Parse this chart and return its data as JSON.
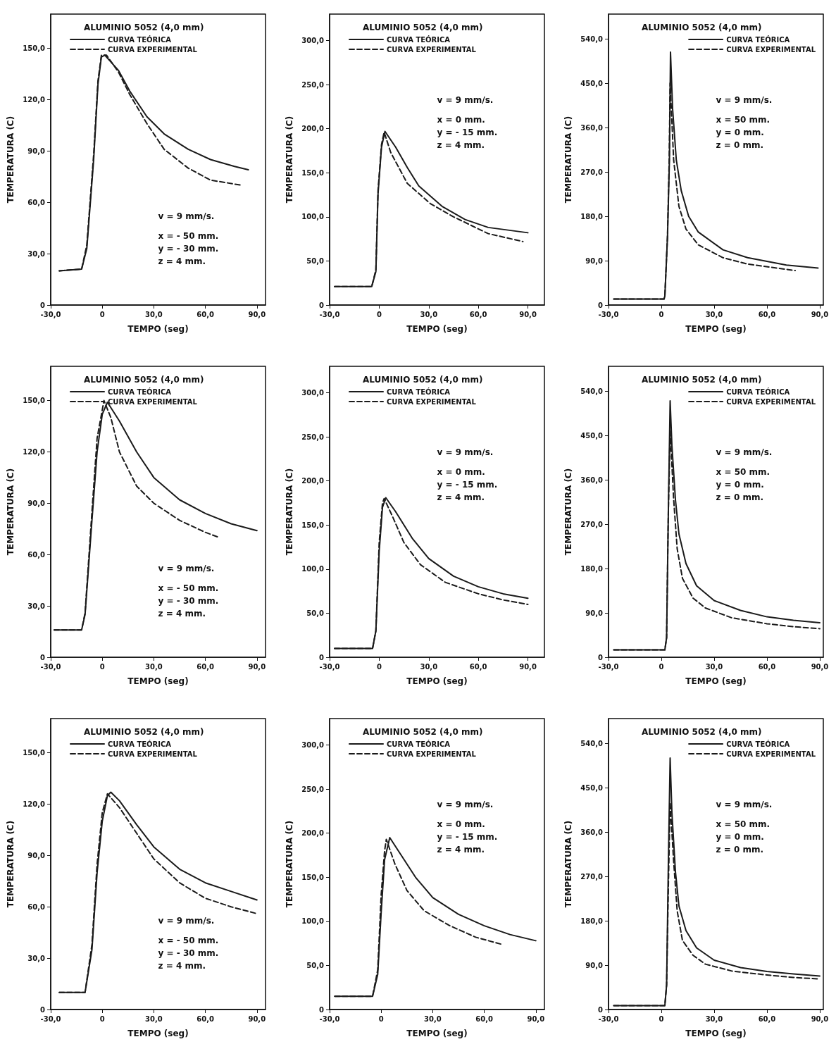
{
  "chart_data": [
    {
      "type": "line",
      "title": "ALUMINIO 5052 (4,0 mm)",
      "xlabel": "TEMPO (seg)",
      "ylabel": "TEMPERATURA (C)",
      "xlim": [
        -30,
        95
      ],
      "ylim": [
        0,
        170
      ],
      "xticks": [
        {
          "value": -30,
          "label": "-30,0"
        },
        {
          "value": 0,
          "label": "0"
        },
        {
          "value": 30,
          "label": "30,0"
        },
        {
          "value": 60,
          "label": "60,0"
        },
        {
          "value": 90,
          "label": "90,0"
        }
      ],
      "yticks": [
        {
          "value": 0,
          "label": "0"
        },
        {
          "value": 30,
          "label": "30,0"
        },
        {
          "value": 60,
          "label": "60,0"
        },
        {
          "value": 90,
          "label": "90,0"
        },
        {
          "value": 120,
          "label": "120,0"
        },
        {
          "value": 150,
          "label": "150,0"
        }
      ],
      "grid": false,
      "legend": "top left",
      "marker": "none",
      "annotations": [
        "v = 9 mm/s.",
        "x = - 50 mm.",
        "y = - 30 mm.",
        "z = 4 mm."
      ],
      "series": [
        {
          "name": "CURVA TEÓRICA",
          "color": "#1a1a1a",
          "line_style": "solid",
          "x": [
            -25,
            -12,
            -9,
            -5,
            -2.5,
            -0.5,
            1.5,
            9.5,
            16,
            26,
            36,
            50,
            63,
            77,
            85
          ],
          "values": [
            20,
            21,
            33,
            85,
            129,
            145,
            146,
            137,
            125,
            110,
            100,
            91,
            85,
            81,
            79
          ]
        },
        {
          "name": "CURVA EXPERIMENTAL",
          "color": "#1a1a1a",
          "line_style": "dashed",
          "x": [
            -25,
            -12,
            -9,
            -5,
            -2.5,
            -0.5,
            2.5,
            9.5,
            16,
            26,
            36,
            50,
            63,
            81
          ],
          "values": [
            20,
            21,
            35,
            88,
            131,
            146,
            146,
            136,
            123,
            106,
            91,
            80,
            73,
            70
          ]
        }
      ]
    },
    {
      "type": "line",
      "title": "ALUMINIO 5052 (4,0 mm)",
      "xlabel": "TEMPO (seg)",
      "ylabel": "TEMPERATURA (C)",
      "xlim": [
        -30,
        100
      ],
      "ylim": [
        0,
        330
      ],
      "xticks": [
        {
          "value": -30,
          "label": "-30,0"
        },
        {
          "value": 0,
          "label": "0"
        },
        {
          "value": 30,
          "label": "30,0"
        },
        {
          "value": 60,
          "label": "60,0"
        },
        {
          "value": 90,
          "label": "90,0"
        }
      ],
      "yticks": [
        {
          "value": 0,
          "label": "0"
        },
        {
          "value": 50,
          "label": "50,0"
        },
        {
          "value": 100,
          "label": "100,0"
        },
        {
          "value": 150,
          "label": "150,0"
        },
        {
          "value": 200,
          "label": "200,0"
        },
        {
          "value": 250,
          "label": "250,0"
        },
        {
          "value": 300,
          "label": "300,0"
        }
      ],
      "grid": false,
      "legend": "top left",
      "marker": "none",
      "annotations": [
        "v = 9 mm/s.",
        "x = 0 mm.",
        "y = - 15 mm.",
        "z = 4 mm."
      ],
      "series": [
        {
          "name": "CURVA TEÓRICA",
          "color": "#1a1a1a",
          "line_style": "solid",
          "x": [
            -27,
            -4.5,
            -2,
            -0.7,
            1.4,
            3.5,
            10,
            17,
            24,
            38,
            52,
            66,
            90
          ],
          "values": [
            21,
            21,
            38,
            126,
            179,
            197,
            179,
            156,
            135,
            112,
            97,
            88,
            82
          ]
        },
        {
          "name": "CURVA EXPERIMENTAL",
          "color": "#1a1a1a",
          "line_style": "dashed",
          "x": [
            -27,
            -4.5,
            -2,
            -0.7,
            1.4,
            3,
            7,
            17,
            31,
            45,
            66,
            87
          ],
          "values": [
            21,
            21,
            40,
            130,
            182,
            196,
            173,
            138,
            115,
            100,
            81,
            72
          ]
        }
      ]
    },
    {
      "type": "line",
      "title": "ALUMINIO 5052 (4,0 mm)",
      "xlabel": "TEMPO (seg)",
      "ylabel": "TEMPERATURA (C)",
      "xlim": [
        -30,
        92
      ],
      "ylim": [
        0,
        590
      ],
      "xticks": [
        {
          "value": -30,
          "label": "-30,0"
        },
        {
          "value": 0,
          "label": "0"
        },
        {
          "value": 30,
          "label": "30,0"
        },
        {
          "value": 60,
          "label": "60,0"
        },
        {
          "value": 90,
          "label": "90,0"
        }
      ],
      "yticks": [
        {
          "value": 0,
          "label": "0"
        },
        {
          "value": 90,
          "label": "90,0"
        },
        {
          "value": 180,
          "label": "180,0"
        },
        {
          "value": 270,
          "label": "270,0"
        },
        {
          "value": 360,
          "label": "360,0"
        },
        {
          "value": 450,
          "label": "450,0"
        },
        {
          "value": 540,
          "label": "540,0"
        }
      ],
      "grid": false,
      "legend": "top right",
      "marker": "none",
      "annotations": [
        "v = 9 mm/s.",
        "x = 50 mm.",
        "y = 0 mm.",
        "z = 0 mm."
      ],
      "series": [
        {
          "name": "CURVA TEÓRICA",
          "color": "#1a1a1a",
          "line_style": "solid",
          "x": [
            -27,
            1.5,
            2,
            3.5,
            4.6,
            5.2,
            6.4,
            8.5,
            11.3,
            15.5,
            21,
            35,
            49,
            71,
            89
          ],
          "values": [
            12,
            12,
            18,
            138,
            294,
            513,
            398,
            294,
            232,
            180,
            148,
            112,
            96,
            81,
            75
          ]
        },
        {
          "name": "CURVA EXPERIMENTAL",
          "color": "#1a1a1a",
          "line_style": "dashed",
          "x": [
            -27,
            1.5,
            2,
            3.5,
            4.5,
            5,
            7,
            10,
            14,
            21,
            35,
            49,
            76
          ],
          "values": [
            12,
            12,
            18,
            140,
            300,
            450,
            294,
            200,
            154,
            122,
            96,
            83,
            70
          ]
        }
      ]
    },
    {
      "type": "line",
      "title": "ALUMINIO 5052 (4,0 mm)",
      "xlabel": "TEMPO (seg)",
      "ylabel": "TEMPERATURA (C)",
      "xlim": [
        -30,
        95
      ],
      "ylim": [
        0,
        170
      ],
      "xticks": [
        {
          "value": -30,
          "label": "-30,0"
        },
        {
          "value": 0,
          "label": "0"
        },
        {
          "value": 30,
          "label": "30,0"
        },
        {
          "value": 60,
          "label": "60,0"
        },
        {
          "value": 90,
          "label": "90,0"
        }
      ],
      "yticks": [
        {
          "value": 0,
          "label": "0"
        },
        {
          "value": 30,
          "label": "30,0"
        },
        {
          "value": 60,
          "label": "60,0"
        },
        {
          "value": 90,
          "label": "90,0"
        },
        {
          "value": 120,
          "label": "120,0"
        },
        {
          "value": 150,
          "label": "150,0"
        }
      ],
      "grid": false,
      "legend": "top left",
      "marker": "none",
      "annotations": [
        "v = 9 mm/s.",
        "x = - 50 mm.",
        "y = - 30 mm.",
        "z = 4 mm."
      ],
      "series": [
        {
          "name": "CURVA TEÓRICA",
          "color": "#1a1a1a",
          "line_style": "solid",
          "x": [
            -28,
            -12,
            -10,
            -6,
            -3,
            0,
            3,
            10,
            20,
            30,
            45,
            60,
            75,
            90
          ],
          "values": [
            16,
            16,
            25,
            80,
            120,
            142,
            149,
            138,
            120,
            105,
            92,
            84,
            78,
            74
          ]
        },
        {
          "name": "CURVA EXPERIMENTAL",
          "color": "#1a1a1a",
          "line_style": "dashed",
          "x": [
            -28,
            -12,
            -10,
            -6,
            -3,
            1,
            5,
            10,
            20,
            30,
            45,
            60,
            68
          ],
          "values": [
            16,
            16,
            26,
            85,
            128,
            150,
            140,
            120,
            100,
            90,
            80,
            73,
            70
          ]
        }
      ]
    },
    {
      "type": "line",
      "title": "ALUMINIO 5052 (4,0 mm)",
      "xlabel": "TEMPO (seg)",
      "ylabel": "TEMPERATURA (C)",
      "xlim": [
        -30,
        100
      ],
      "ylim": [
        0,
        330
      ],
      "xticks": [
        {
          "value": -30,
          "label": "-30,0"
        },
        {
          "value": 0,
          "label": "0"
        },
        {
          "value": 30,
          "label": "30,0"
        },
        {
          "value": 60,
          "label": "60,0"
        },
        {
          "value": 90,
          "label": "90,0"
        }
      ],
      "yticks": [
        {
          "value": 0,
          "label": "0"
        },
        {
          "value": 50,
          "label": "50,0"
        },
        {
          "value": 100,
          "label": "100,0"
        },
        {
          "value": 150,
          "label": "150,0"
        },
        {
          "value": 200,
          "label": "200,0"
        },
        {
          "value": 250,
          "label": "250,0"
        },
        {
          "value": 300,
          "label": "300,0"
        }
      ],
      "grid": false,
      "legend": "top left",
      "marker": "none",
      "annotations": [
        "v = 9 mm/s.",
        "x = 0 mm.",
        "y = - 15 mm.",
        "z = 4 mm."
      ],
      "series": [
        {
          "name": "CURVA TEÓRICA",
          "color": "#1a1a1a",
          "line_style": "solid",
          "x": [
            -27,
            -4,
            -2,
            0,
            2,
            4,
            10,
            20,
            30,
            45,
            60,
            75,
            90
          ],
          "values": [
            10,
            10,
            30,
            120,
            170,
            181,
            165,
            135,
            112,
            92,
            80,
            72,
            67
          ]
        },
        {
          "name": "CURVA EXPERIMENTAL",
          "color": "#1a1a1a",
          "line_style": "dashed",
          "x": [
            -27,
            -4,
            -2,
            0,
            2,
            3,
            8,
            15,
            25,
            40,
            60,
            75,
            90
          ],
          "values": [
            10,
            10,
            30,
            130,
            175,
            180,
            160,
            130,
            105,
            85,
            72,
            65,
            60
          ]
        }
      ]
    },
    {
      "type": "line",
      "title": "ALUMINIO 5052 (4,0 mm)",
      "xlabel": "TEMPO (seg)",
      "ylabel": "TEMPERATURA (C)",
      "xlim": [
        -30,
        92
      ],
      "ylim": [
        0,
        590
      ],
      "xticks": [
        {
          "value": -30,
          "label": "-30,0"
        },
        {
          "value": 0,
          "label": "0"
        },
        {
          "value": 30,
          "label": "30,0"
        },
        {
          "value": 60,
          "label": "60,0"
        },
        {
          "value": 90,
          "label": "90,0"
        }
      ],
      "yticks": [
        {
          "value": 0,
          "label": "0"
        },
        {
          "value": 90,
          "label": "90,0"
        },
        {
          "value": 180,
          "label": "180,0"
        },
        {
          "value": 270,
          "label": "270,0"
        },
        {
          "value": 360,
          "label": "360,0"
        },
        {
          "value": 450,
          "label": "450,0"
        },
        {
          "value": 540,
          "label": "540,0"
        }
      ],
      "grid": false,
      "legend": "top right",
      "marker": "none",
      "annotations": [
        "v = 9 mm/s.",
        "x = 50 mm.",
        "y = 0 mm.",
        "z = 0 mm."
      ],
      "series": [
        {
          "name": "CURVA TEÓRICA",
          "color": "#1a1a1a",
          "line_style": "solid",
          "x": [
            -27,
            2,
            3,
            4,
            5,
            6,
            8,
            10,
            14,
            20,
            30,
            45,
            60,
            75,
            90
          ],
          "values": [
            15,
            15,
            40,
            300,
            520,
            430,
            320,
            250,
            190,
            145,
            115,
            95,
            82,
            75,
            70
          ]
        },
        {
          "name": "CURVA EXPERIMENTAL",
          "color": "#1a1a1a",
          "line_style": "dashed",
          "x": [
            -27,
            2,
            3,
            4,
            5,
            7,
            9,
            12,
            18,
            25,
            40,
            60,
            75,
            90
          ],
          "values": [
            15,
            15,
            40,
            300,
            460,
            320,
            220,
            160,
            120,
            100,
            80,
            68,
            62,
            58
          ]
        }
      ]
    },
    {
      "type": "line",
      "title": "ALUMINIO 5052 (4,0 mm)",
      "xlabel": "TEMPO (seg)",
      "ylabel": "TEMPERATURA (C)",
      "xlim": [
        -30,
        95
      ],
      "ylim": [
        0,
        170
      ],
      "xticks": [
        {
          "value": -30,
          "label": "-30,0"
        },
        {
          "value": 0,
          "label": "0"
        },
        {
          "value": 30,
          "label": "30,0"
        },
        {
          "value": 60,
          "label": "60,0"
        },
        {
          "value": 90,
          "label": "90,0"
        }
      ],
      "yticks": [
        {
          "value": 0,
          "label": "0"
        },
        {
          "value": 30,
          "label": "30,0"
        },
        {
          "value": 60,
          "label": "60,0"
        },
        {
          "value": 90,
          "label": "90,0"
        },
        {
          "value": 120,
          "label": "120,0"
        },
        {
          "value": 150,
          "label": "150,0"
        }
      ],
      "grid": false,
      "legend": "top left",
      "marker": "none",
      "annotations": [
        "v = 9 mm/s.",
        "x = - 50 mm.",
        "y = - 30 mm.",
        "z = 4 mm."
      ],
      "series": [
        {
          "name": "CURVA TEÓRICA",
          "color": "#1a1a1a",
          "line_style": "solid",
          "x": [
            -25,
            -10,
            -6,
            -3,
            0,
            3,
            5,
            10,
            20,
            30,
            45,
            60,
            75,
            90
          ],
          "values": [
            10,
            10,
            35,
            80,
            110,
            125,
            127,
            122,
            108,
            95,
            82,
            74,
            69,
            64
          ]
        },
        {
          "name": "CURVA EXPERIMENTAL",
          "color": "#1a1a1a",
          "line_style": "dashed",
          "x": [
            -25,
            -10,
            -6,
            -3,
            0,
            3,
            10,
            20,
            30,
            45,
            60,
            75,
            90
          ],
          "values": [
            10,
            10,
            38,
            85,
            115,
            126,
            118,
            103,
            88,
            74,
            65,
            60,
            56
          ]
        }
      ]
    },
    {
      "type": "line",
      "title": "ALUMINIO 5052 (4,0 mm)",
      "xlabel": "TEMPO (seg)",
      "ylabel": "TEMPERATURA (C)",
      "xlim": [
        -30,
        95
      ],
      "ylim": [
        0,
        330
      ],
      "xticks": [
        {
          "value": -30,
          "label": "-30,0"
        },
        {
          "value": 0,
          "label": "0"
        },
        {
          "value": 30,
          "label": "30,0"
        },
        {
          "value": 60,
          "label": "60,0"
        },
        {
          "value": 90,
          "label": "90,0"
        }
      ],
      "yticks": [
        {
          "value": 0,
          "label": "0"
        },
        {
          "value": 50,
          "label": "50,0"
        },
        {
          "value": 100,
          "label": "100,0"
        },
        {
          "value": 150,
          "label": "150,0"
        },
        {
          "value": 200,
          "label": "200,0"
        },
        {
          "value": 250,
          "label": "250,0"
        },
        {
          "value": 300,
          "label": "300,0"
        }
      ],
      "grid": false,
      "legend": "top left",
      "marker": "none",
      "annotations": [
        "v = 9 mm/s.",
        "x = 0 mm.",
        "y = - 15 mm.",
        "z = 4 mm."
      ],
      "series": [
        {
          "name": "CURVA TEÓRICA",
          "color": "#1a1a1a",
          "line_style": "solid",
          "x": [
            -27,
            -5,
            -2,
            0,
            2,
            5,
            10,
            20,
            30,
            45,
            60,
            75,
            90
          ],
          "values": [
            15,
            15,
            40,
            110,
            170,
            195,
            180,
            150,
            127,
            108,
            95,
            85,
            78
          ]
        },
        {
          "name": "CURVA EXPERIMENTAL",
          "color": "#1a1a1a",
          "line_style": "dashed",
          "x": [
            -27,
            -5,
            -2,
            0,
            2,
            3,
            8,
            15,
            25,
            40,
            55,
            70
          ],
          "values": [
            15,
            15,
            45,
            130,
            180,
            193,
            165,
            135,
            112,
            95,
            82,
            74
          ]
        }
      ]
    },
    {
      "type": "line",
      "title": "ALUMINIO 5052 (4,0 mm)",
      "xlabel": "TEMPO (seg)",
      "ylabel": "TEMPERATURA (C)",
      "xlim": [
        -30,
        92
      ],
      "ylim": [
        0,
        590
      ],
      "xticks": [
        {
          "value": -30,
          "label": "-30,0"
        },
        {
          "value": 0,
          "label": "0"
        },
        {
          "value": 30,
          "label": "30,0"
        },
        {
          "value": 60,
          "label": "60,0"
        },
        {
          "value": 90,
          "label": "90,0"
        }
      ],
      "yticks": [
        {
          "value": 0,
          "label": "0"
        },
        {
          "value": 90,
          "label": "90,0"
        },
        {
          "value": 180,
          "label": "180,0"
        },
        {
          "value": 270,
          "label": "270,0"
        },
        {
          "value": 360,
          "label": "360,0"
        },
        {
          "value": 450,
          "label": "450,0"
        },
        {
          "value": 540,
          "label": "540,0"
        }
      ],
      "grid": false,
      "legend": "top right",
      "marker": "none",
      "annotations": [
        "v = 9 mm/s.",
        "x = 50 mm.",
        "y = 0 mm.",
        "z = 0 mm."
      ],
      "series": [
        {
          "name": "CURVA TEÓRICA",
          "color": "#1a1a1a",
          "line_style": "solid",
          "x": [
            -27,
            2,
            3,
            4,
            5,
            6,
            8,
            10,
            14,
            20,
            30,
            45,
            60,
            75,
            90
          ],
          "values": [
            8,
            8,
            50,
            300,
            510,
            400,
            280,
            210,
            160,
            125,
            100,
            85,
            77,
            72,
            68
          ]
        },
        {
          "name": "CURVA EXPERIMENTAL",
          "color": "#1a1a1a",
          "line_style": "dashed",
          "x": [
            -27,
            2,
            3,
            4,
            5,
            7,
            9,
            12,
            18,
            25,
            40,
            60,
            75,
            90
          ],
          "values": [
            8,
            8,
            50,
            250,
            420,
            300,
            200,
            140,
            110,
            92,
            78,
            70,
            65,
            62
          ]
        }
      ]
    }
  ]
}
